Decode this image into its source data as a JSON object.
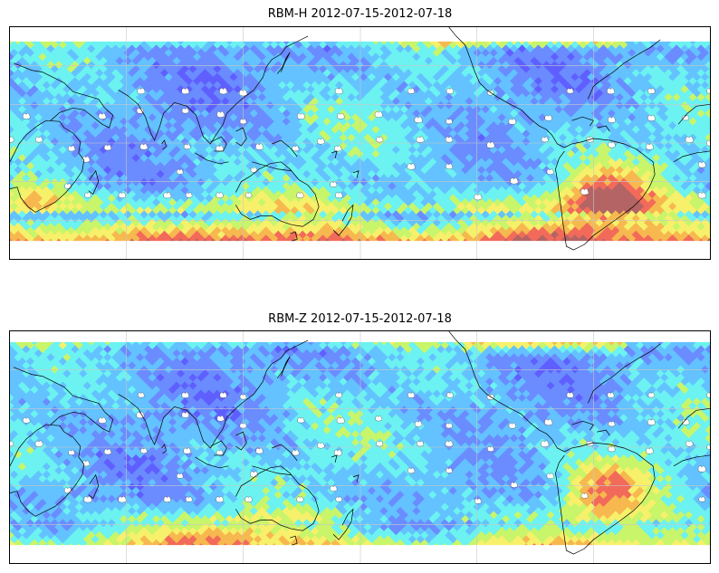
{
  "panels": [
    {
      "title": "RBM-H 2012-07-15-2012-07-18",
      "variant": "H",
      "seed": 7
    },
    {
      "title": "RBM-Z 2012-07-15-2012-07-18",
      "variant": "Z",
      "seed": 19
    }
  ],
  "colormap": [
    "#5f5fff",
    "#6a8cff",
    "#63c2ff",
    "#6cf2f0",
    "#c8f56a",
    "#f7f06a",
    "#f6b84f",
    "#f26a5a",
    "#b46464"
  ],
  "coastline_color": "#000000",
  "grid_color": "#c8c8c8"
}
